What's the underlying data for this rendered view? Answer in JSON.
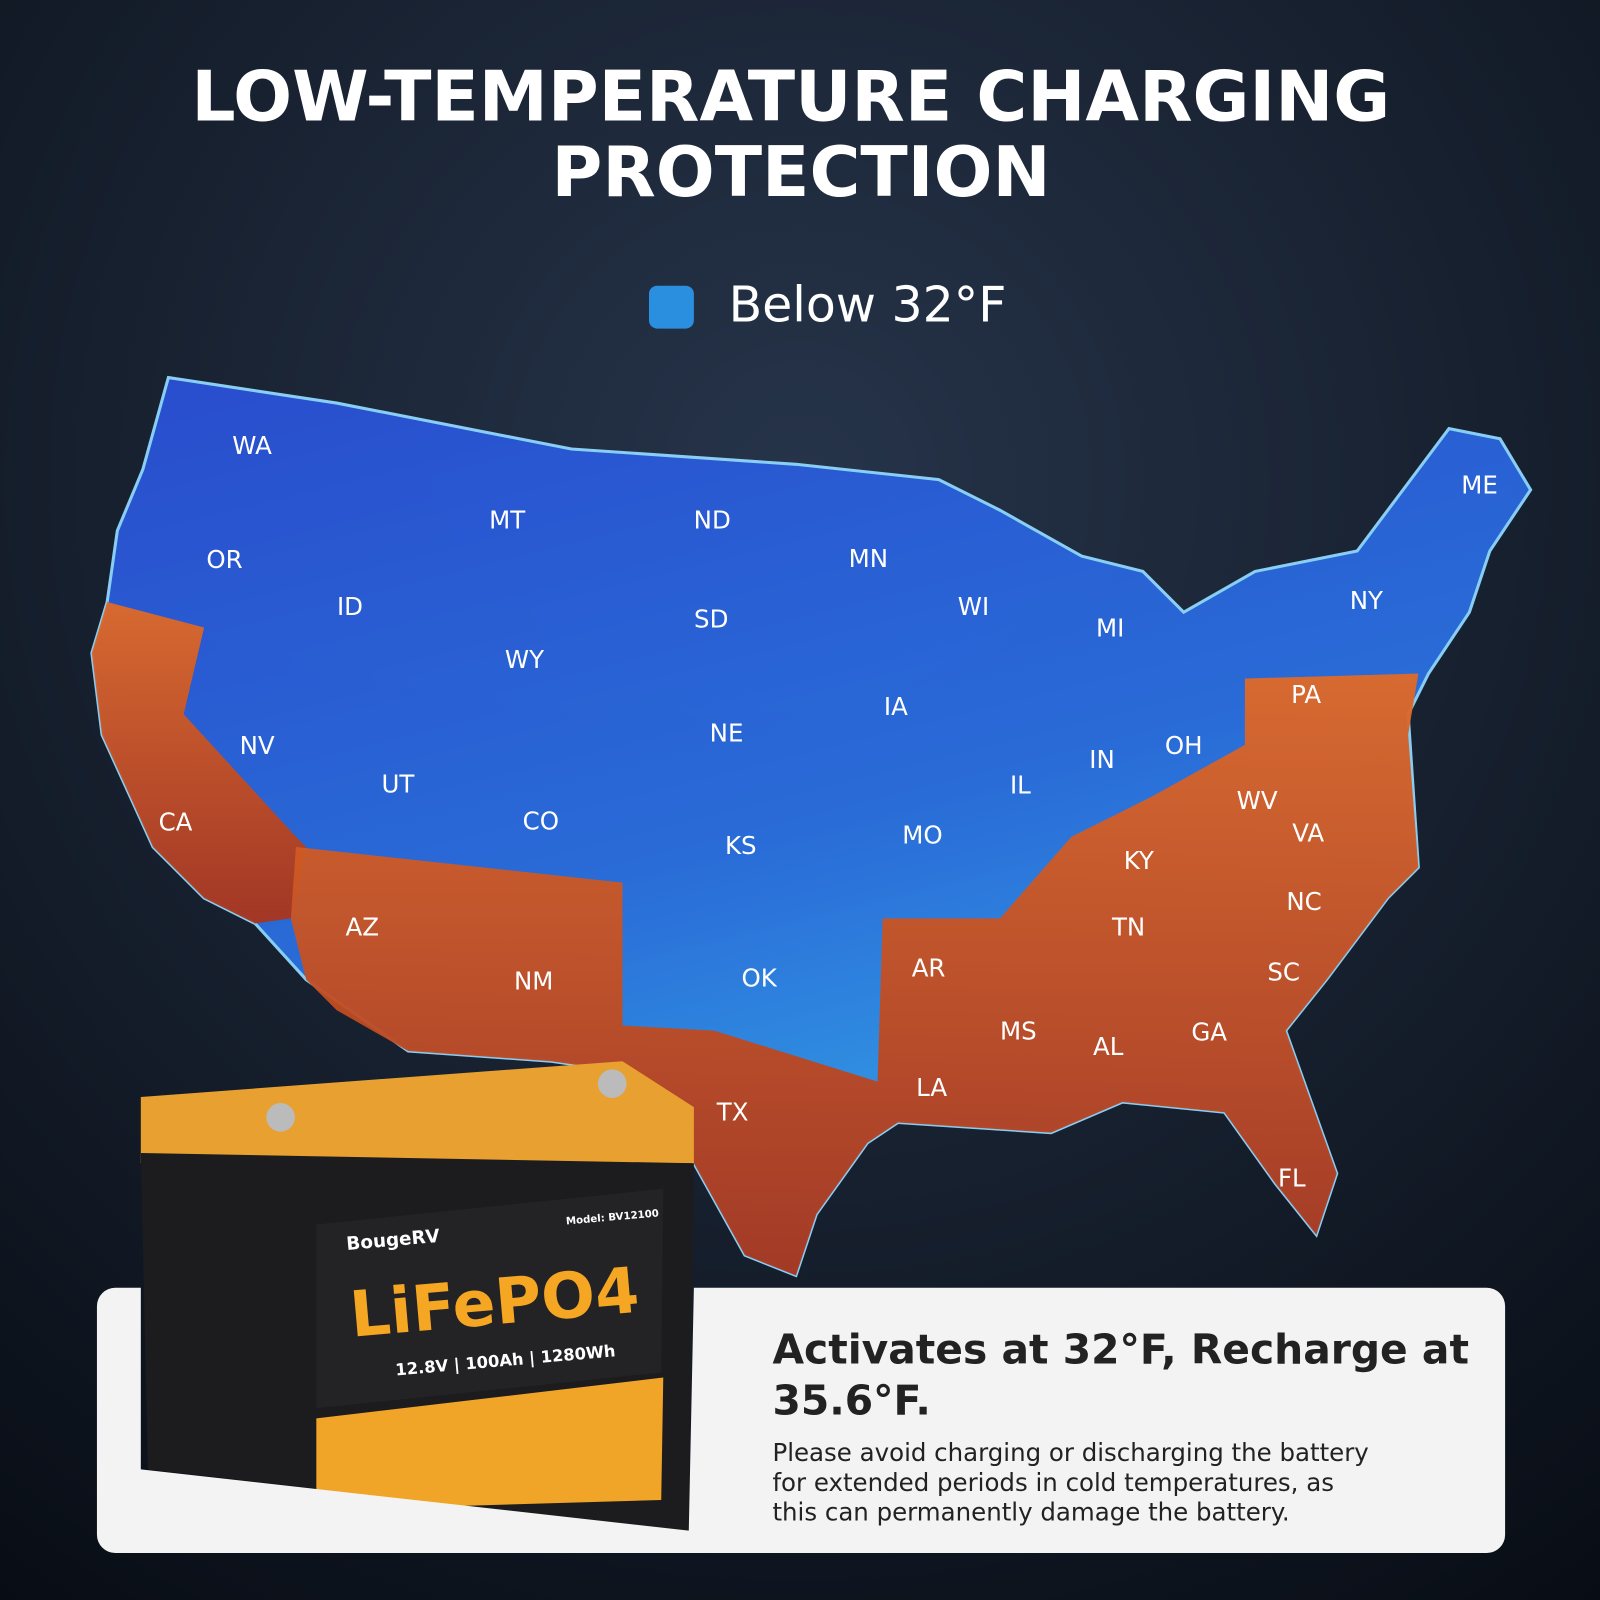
{
  "header": {
    "title_lines": [
      "LOW-TEMPERATURE CHARGING",
      "PROTECTION"
    ]
  },
  "legend": {
    "label": "Below 32°F",
    "color": "#2b8fe0"
  },
  "map": {
    "states": [
      {
        "label": "WA",
        "zone": "cold"
      },
      {
        "label": "OR",
        "zone": "cold"
      },
      {
        "label": "ID",
        "zone": "cold"
      },
      {
        "label": "MT",
        "zone": "cold"
      },
      {
        "label": "ND",
        "zone": "cold"
      },
      {
        "label": "MN",
        "zone": "cold"
      },
      {
        "label": "SD",
        "zone": "cold"
      },
      {
        "label": "WY",
        "zone": "cold"
      },
      {
        "label": "WI",
        "zone": "cold"
      },
      {
        "label": "MI",
        "zone": "cold"
      },
      {
        "label": "NY",
        "zone": "cold"
      },
      {
        "label": "ME",
        "zone": "cold"
      },
      {
        "label": "NV",
        "zone": "cold"
      },
      {
        "label": "UT",
        "zone": "cold"
      },
      {
        "label": "CO",
        "zone": "cold"
      },
      {
        "label": "NE",
        "zone": "cold"
      },
      {
        "label": "IA",
        "zone": "cold"
      },
      {
        "label": "IL",
        "zone": "cold"
      },
      {
        "label": "IN",
        "zone": "cold"
      },
      {
        "label": "OH",
        "zone": "cold"
      },
      {
        "label": "KS",
        "zone": "cold"
      },
      {
        "label": "MO",
        "zone": "cold"
      },
      {
        "label": "OK",
        "zone": "cold"
      },
      {
        "label": "PA",
        "zone": "warm"
      },
      {
        "label": "CA",
        "zone": "warm"
      },
      {
        "label": "AZ",
        "zone": "warm"
      },
      {
        "label": "NM",
        "zone": "warm"
      },
      {
        "label": "TX",
        "zone": "warm"
      },
      {
        "label": "AR",
        "zone": "warm"
      },
      {
        "label": "LA",
        "zone": "warm"
      },
      {
        "label": "MS",
        "zone": "warm"
      },
      {
        "label": "AL",
        "zone": "warm"
      },
      {
        "label": "GA",
        "zone": "warm"
      },
      {
        "label": "FL",
        "zone": "warm"
      },
      {
        "label": "TN",
        "zone": "warm"
      },
      {
        "label": "KY",
        "zone": "warm"
      },
      {
        "label": "WV",
        "zone": "warm"
      },
      {
        "label": "VA",
        "zone": "warm"
      },
      {
        "label": "NC",
        "zone": "warm"
      },
      {
        "label": "SC",
        "zone": "warm"
      }
    ]
  },
  "battery": {
    "brand": "BougeRV",
    "model": "Model: BV12100",
    "chemistry": "LiFePO4",
    "specs": "12.8V | 100Ah | 1280Wh"
  },
  "card": {
    "heading_lines": [
      "Activates at 32°F, Recharge at",
      "35.6°F."
    ],
    "body_lines": [
      "Please avoid charging or discharging the battery",
      "for extended periods in cold temperatures, as",
      "this can permanently damage the battery."
    ]
  }
}
